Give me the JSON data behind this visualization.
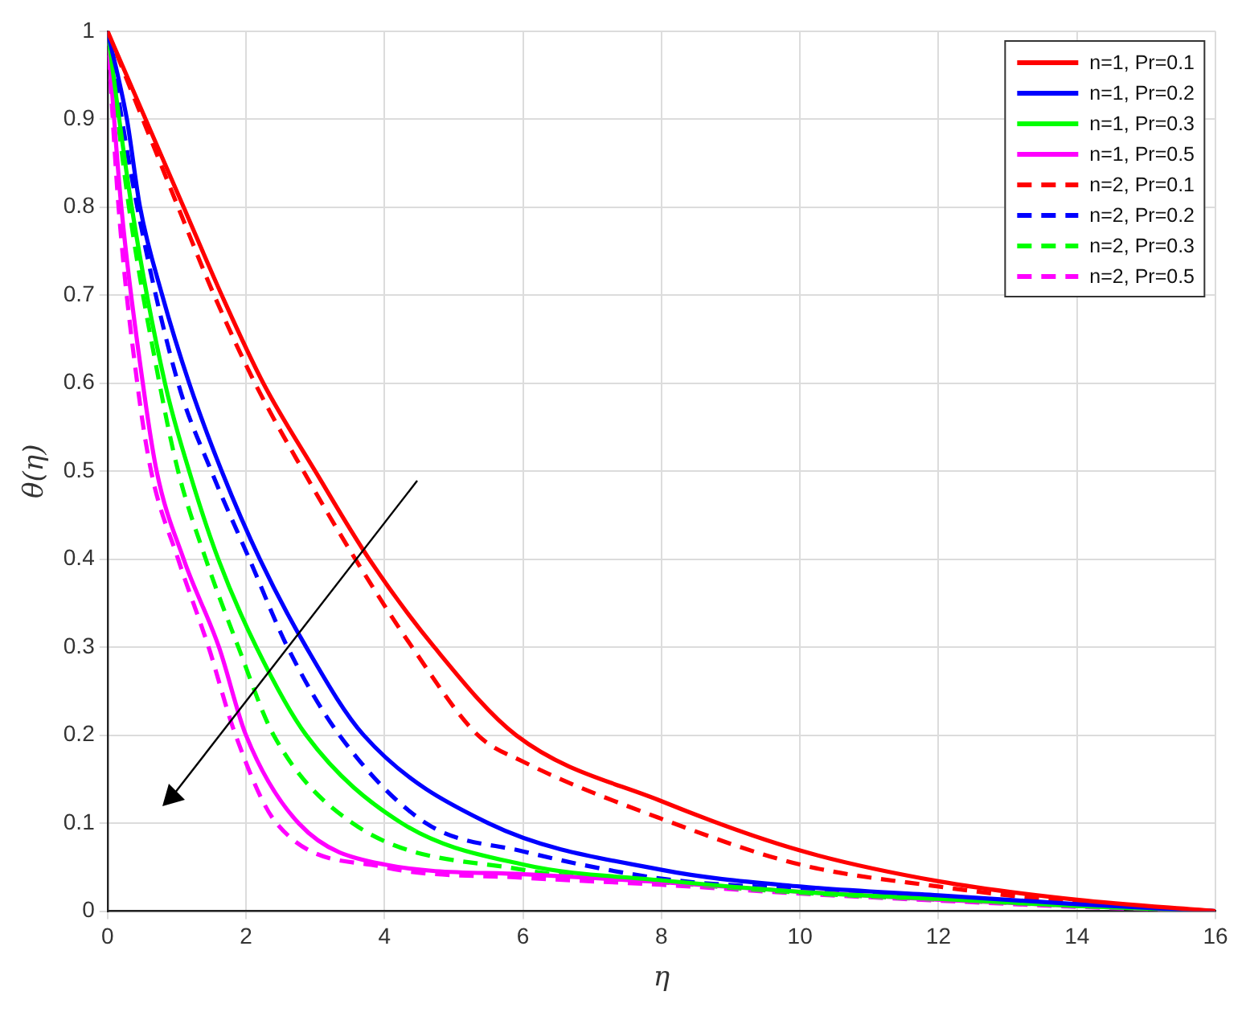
{
  "chart_data": {
    "type": "line",
    "xlabel": "η",
    "ylabel": "θ(η)",
    "xlim": [
      0,
      16
    ],
    "ylim": [
      0,
      1
    ],
    "xticks": [
      0,
      2,
      4,
      6,
      8,
      10,
      12,
      14,
      16
    ],
    "yticks": [
      0,
      0.1,
      0.2,
      0.3,
      0.4,
      0.5,
      0.6,
      0.7,
      0.8,
      0.9,
      1
    ],
    "grid": true,
    "legend": "top right",
    "marker": "none",
    "series": [
      {
        "name": "n=1, Pr=0.1",
        "color": "#ff0000",
        "line_style": "solid",
        "x": [
          0,
          1.1,
          1.65,
          2.25,
          3.0,
          3.78,
          4.72,
          5.9,
          8,
          10,
          12,
          14,
          16
        ],
        "values": [
          1,
          0.8,
          0.7,
          0.6,
          0.5,
          0.4,
          0.3,
          0.2,
          0.125,
          0.069,
          0.034,
          0.013,
          0
        ]
      },
      {
        "name": "n=1, Pr=0.2",
        "color": "#0000ff",
        "line_style": "solid",
        "x": [
          0,
          0.28,
          0.47,
          0.79,
          1.18,
          1.65,
          2.2,
          2.87,
          3.7,
          5.5,
          8,
          10,
          12,
          14,
          16
        ],
        "values": [
          1,
          0.9,
          0.8,
          0.7,
          0.6,
          0.5,
          0.4,
          0.3,
          0.2,
          0.1,
          0.047,
          0.028,
          0.018,
          0.008,
          0
        ]
      },
      {
        "name": "n=1, Pr=0.3",
        "color": "#00ff00",
        "line_style": "solid",
        "x": [
          0,
          0.35,
          0.83,
          1.18,
          1.6,
          2.15,
          2.87,
          4.25,
          6,
          8,
          10,
          12,
          14,
          16
        ],
        "values": [
          1,
          0.8,
          0.6,
          0.5,
          0.4,
          0.3,
          0.2,
          0.1,
          0.053,
          0.035,
          0.022,
          0.014,
          0.006,
          0
        ]
      },
      {
        "name": "n=1, Pr=0.5",
        "color": "#ff00ff",
        "line_style": "solid",
        "x": [
          0,
          0.2,
          0.51,
          0.71,
          1.1,
          1.61,
          2.0,
          2.76,
          4,
          6,
          8,
          10,
          12,
          14,
          16
        ],
        "values": [
          1,
          0.8,
          0.6,
          0.5,
          0.4,
          0.3,
          0.2,
          0.1,
          0.053,
          0.042,
          0.033,
          0.022,
          0.013,
          0.006,
          0
        ]
      },
      {
        "name": "n=2, Pr=0.1",
        "color": "#ff0000",
        "line_style": "dashed",
        "x": [
          0,
          1.02,
          1.54,
          2.13,
          2.83,
          3.58,
          4.4,
          5.35,
          6,
          8,
          10,
          12,
          14,
          16
        ],
        "values": [
          1,
          0.8,
          0.7,
          0.6,
          0.5,
          0.4,
          0.3,
          0.2,
          0.17,
          0.105,
          0.053,
          0.028,
          0.01,
          0
        ]
      },
      {
        "name": "n=2, Pr=0.2",
        "color": "#0000ff",
        "line_style": "dashed",
        "x": [
          0,
          0.43,
          1.02,
          1.5,
          2.05,
          2.6,
          3.35,
          4.6,
          6,
          8,
          10,
          12,
          14,
          16
        ],
        "values": [
          1,
          0.8,
          0.6,
          0.5,
          0.4,
          0.3,
          0.2,
          0.1,
          0.068,
          0.037,
          0.025,
          0.015,
          0.007,
          0
        ]
      },
      {
        "name": "n=2, Pr=0.3",
        "color": "#00ff00",
        "line_style": "dashed",
        "x": [
          0,
          0.31,
          0.75,
          1.02,
          1.42,
          1.89,
          2.4,
          3.54,
          6,
          8,
          10,
          12,
          14,
          16
        ],
        "values": [
          1,
          0.8,
          0.6,
          0.5,
          0.4,
          0.3,
          0.2,
          0.1,
          0.047,
          0.033,
          0.021,
          0.013,
          0.006,
          0
        ]
      },
      {
        "name": "n=2, Pr=0.5",
        "color": "#ff00ff",
        "line_style": "dashed",
        "x": [
          0,
          0.16,
          0.43,
          0.63,
          1.02,
          1.46,
          1.85,
          2.44,
          4,
          6,
          8,
          10,
          12,
          14,
          16
        ],
        "values": [
          1,
          0.8,
          0.6,
          0.5,
          0.4,
          0.3,
          0.2,
          0.1,
          0.05,
          0.038,
          0.03,
          0.02,
          0.012,
          0.005,
          0
        ]
      }
    ]
  }
}
